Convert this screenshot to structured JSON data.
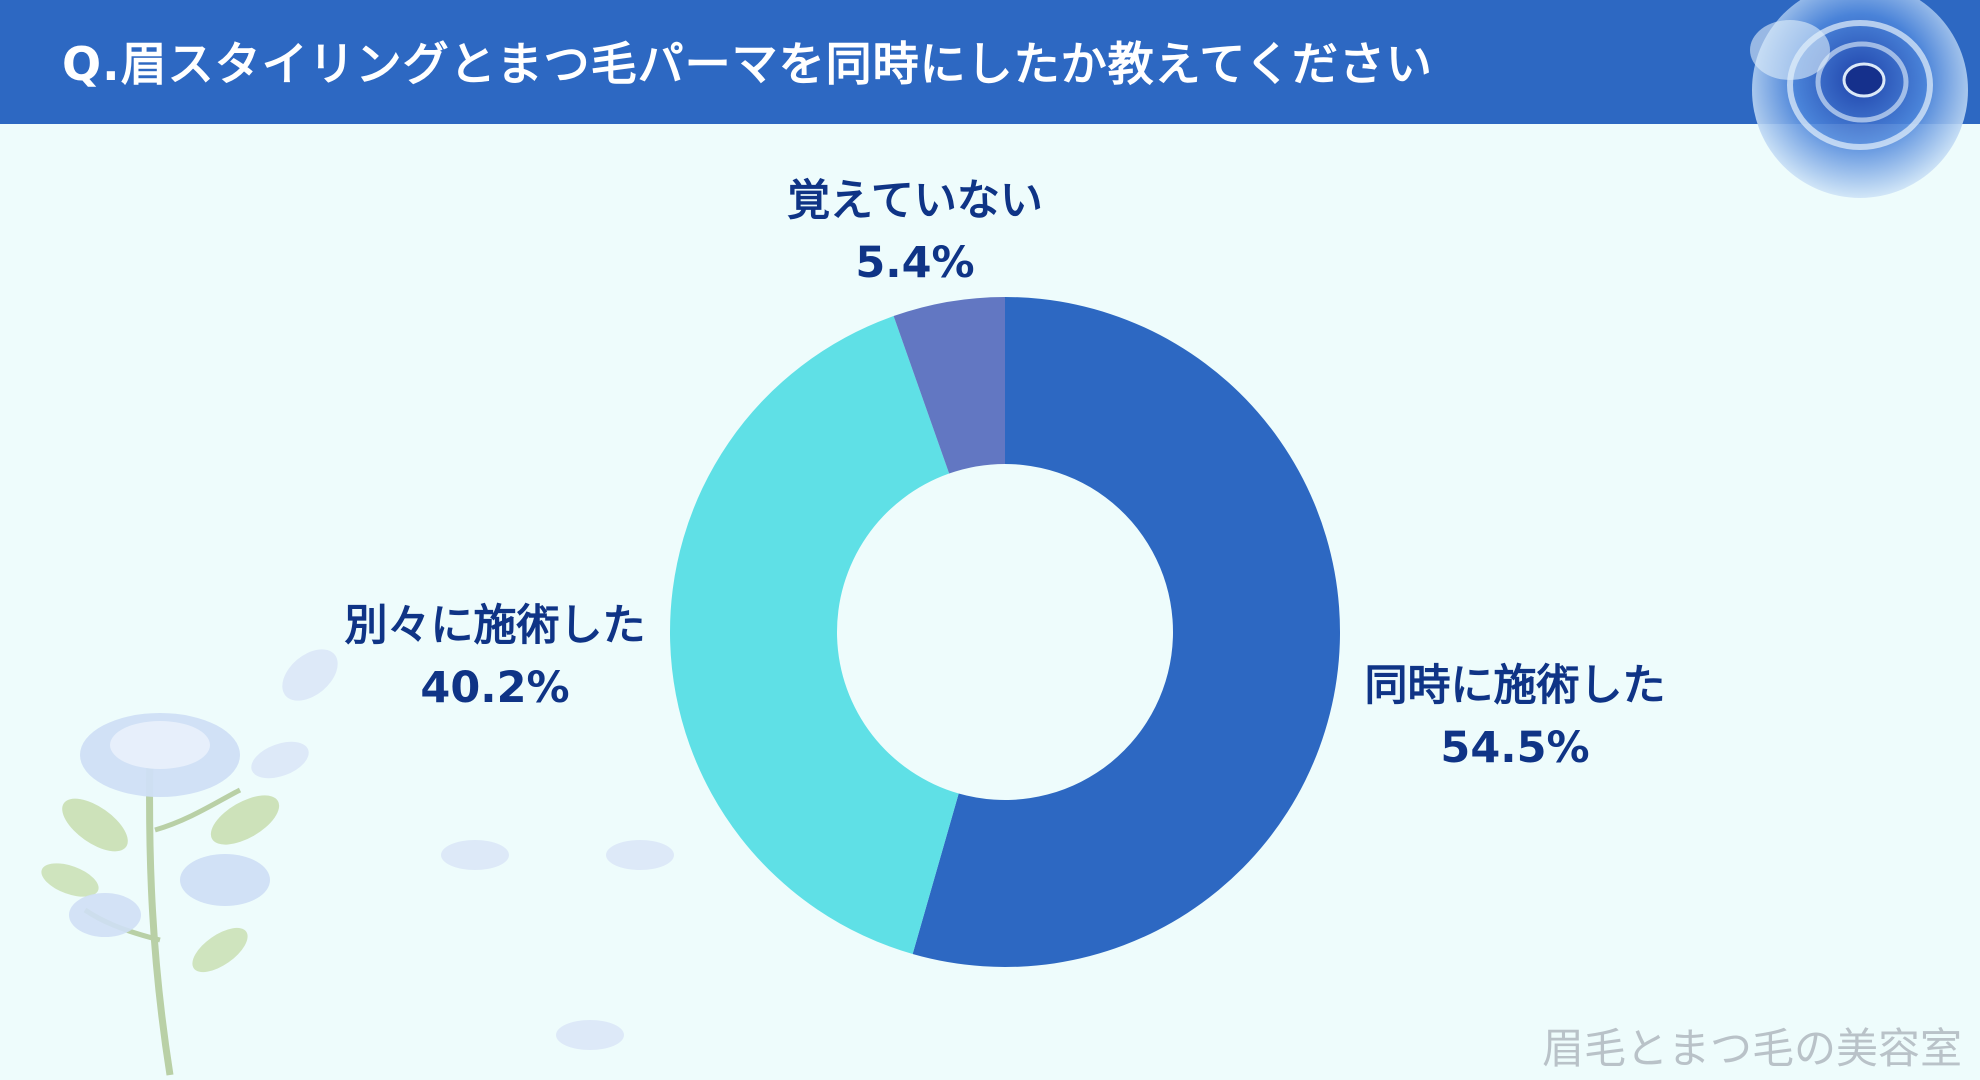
{
  "header": {
    "title": "Q.眉スタイリングとまつ毛パーマを同時にしたか教えてください"
  },
  "chart_data": {
    "type": "pie",
    "hole": true,
    "categories": [
      "同時に施術した",
      "別々に施術した",
      "覚えていない"
    ],
    "values": [
      54.5,
      40.2,
      5.4
    ],
    "value_labels": [
      "54.5%",
      "40.2%",
      "5.4%"
    ],
    "colors": [
      "#2d68c2",
      "#5fe0e6",
      "#6277c2"
    ],
    "legend": "none"
  },
  "watermark": "眉毛とまつ毛の美容室",
  "decorations": [
    "blue-rose-icon",
    "rose-stem-icon",
    "petal-icon"
  ]
}
